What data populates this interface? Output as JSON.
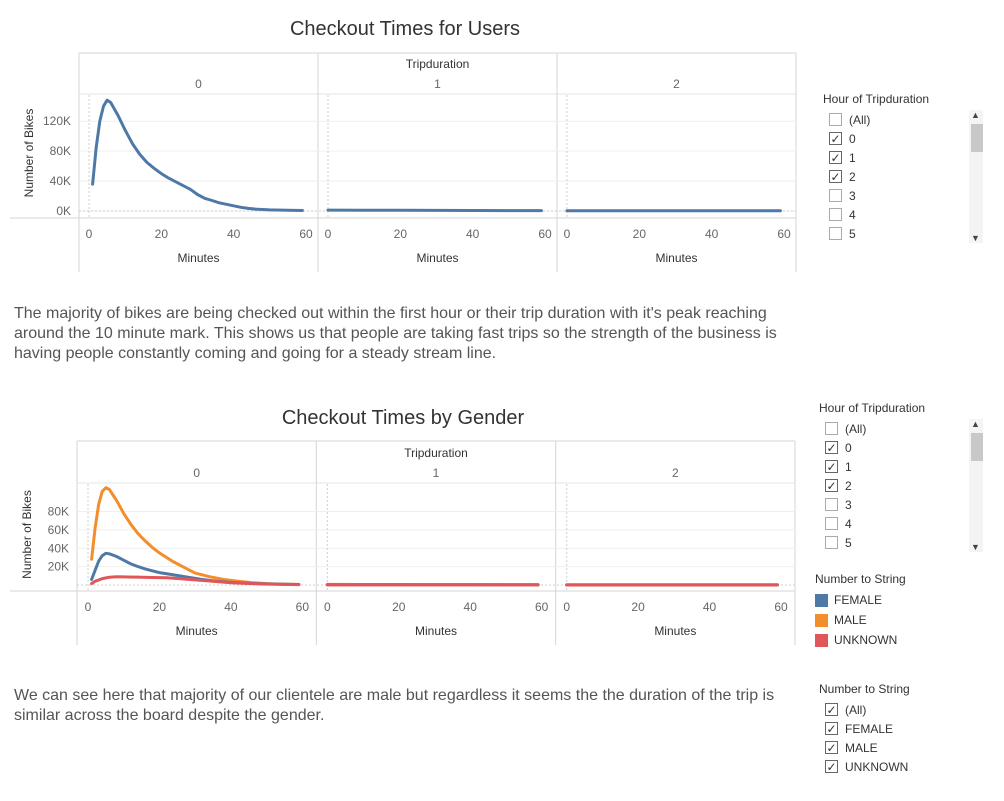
{
  "chart_data": [
    {
      "type": "line",
      "title": "Checkout Times for Users",
      "column_header": "Tripduration",
      "facets": [
        "0",
        "1",
        "2"
      ],
      "xlabel": "Minutes",
      "ylabel": "Number of Bikes",
      "xlim": [
        0,
        60
      ],
      "xticks": [
        "0",
        "20",
        "40",
        "60"
      ],
      "ylim": [
        0,
        155000
      ],
      "yticks": [
        {
          "label": "0K",
          "value": 0
        },
        {
          "label": "40K",
          "value": 40000
        },
        {
          "label": "80K",
          "value": 80000
        },
        {
          "label": "120K",
          "value": 120000
        }
      ],
      "grid": true,
      "series": [
        {
          "color": "#4e79a7",
          "panels": [
            {
              "x": [
                1,
                2,
                3,
                4,
                5,
                6,
                8,
                10,
                12,
                14,
                16,
                18,
                20,
                22,
                24,
                26,
                28,
                30,
                32,
                34,
                36,
                38,
                40,
                42,
                44,
                46,
                48,
                50,
                55,
                59
              ],
              "y": [
                36000,
                85000,
                120000,
                140000,
                148000,
                145000,
                128000,
                108000,
                90000,
                76000,
                65000,
                57000,
                50000,
                44000,
                39000,
                34000,
                29000,
                22000,
                17000,
                14000,
                11000,
                9000,
                7000,
                5000,
                3500,
                2500,
                2000,
                1500,
                1000,
                700
              ]
            },
            {
              "x": [
                0,
                10,
                20,
                30,
                40,
                50,
                59
              ],
              "y": [
                1200,
                1000,
                900,
                800,
                700,
                600,
                500
              ]
            },
            {
              "x": [
                0,
                10,
                20,
                30,
                40,
                50,
                59
              ],
              "y": [
                400,
                400,
                400,
                400,
                400,
                400,
                400
              ]
            }
          ]
        }
      ]
    },
    {
      "type": "line",
      "title": "Checkout Times by Gender",
      "column_header": "Tripduration",
      "facets": [
        "0",
        "1",
        "2"
      ],
      "xlabel": "Minutes",
      "ylabel": "Number of Bikes",
      "xlim": [
        0,
        60
      ],
      "xticks": [
        "0",
        "20",
        "40",
        "60"
      ],
      "ylim": [
        0,
        110000
      ],
      "yticks": [
        {
          "label": "20K",
          "value": 20000
        },
        {
          "label": "40K",
          "value": 40000
        },
        {
          "label": "60K",
          "value": 60000
        },
        {
          "label": "80K",
          "value": 80000
        }
      ],
      "grid": true,
      "series": [
        {
          "name": "MALE",
          "color": "#f28e2b",
          "panels": [
            {
              "x": [
                1,
                2,
                3,
                4,
                5,
                6,
                8,
                10,
                12,
                14,
                16,
                18,
                20,
                22,
                24,
                26,
                28,
                30,
                34,
                38,
                42,
                46,
                50,
                55,
                59
              ],
              "y": [
                28000,
                62000,
                88000,
                102000,
                106000,
                104000,
                92000,
                78000,
                66000,
                56000,
                48000,
                41000,
                35000,
                30000,
                25000,
                21000,
                17000,
                13000,
                9000,
                6000,
                4000,
                2500,
                1500,
                900,
                600
              ]
            },
            {
              "x": [
                0,
                10,
                20,
                30,
                40,
                50,
                59
              ],
              "y": [
                600,
                550,
                500,
                450,
                400,
                380,
                350
              ]
            },
            {
              "x": [
                0,
                10,
                20,
                30,
                40,
                50,
                59
              ],
              "y": [
                200,
                200,
                200,
                200,
                200,
                200,
                200
              ]
            }
          ]
        },
        {
          "name": "FEMALE",
          "color": "#4e79a7",
          "panels": [
            {
              "x": [
                1,
                2,
                3,
                4,
                5,
                6,
                8,
                10,
                12,
                14,
                16,
                18,
                20,
                24,
                28,
                32,
                36,
                40,
                45,
                50,
                55,
                59
              ],
              "y": [
                6000,
                16000,
                26000,
                32000,
                34500,
                34000,
                31000,
                27000,
                23000,
                20000,
                17500,
                15500,
                13500,
                11000,
                8500,
                6000,
                4000,
                2800,
                1800,
                1200,
                800,
                500
              ]
            },
            {
              "x": [
                0,
                10,
                20,
                30,
                40,
                50,
                59
              ],
              "y": [
                300,
                300,
                250,
                250,
                200,
                200,
                200
              ]
            },
            {
              "x": [
                0,
                10,
                20,
                30,
                40,
                50,
                59
              ],
              "y": [
                100,
                100,
                100,
                100,
                100,
                100,
                100
              ]
            }
          ]
        },
        {
          "name": "UNKNOWN",
          "color": "#e15759",
          "panels": [
            {
              "x": [
                1,
                2,
                4,
                6,
                8,
                10,
                14,
                18,
                22,
                26,
                30,
                35,
                40,
                45,
                50,
                55,
                59
              ],
              "y": [
                1500,
                4000,
                7000,
                8500,
                9000,
                8800,
                8600,
                8200,
                7800,
                6800,
                5500,
                4000,
                2500,
                1600,
                1000,
                600,
                400
              ]
            },
            {
              "x": [
                0,
                10,
                20,
                30,
                40,
                50,
                59
              ],
              "y": [
                100,
                100,
                100,
                100,
                100,
                100,
                100
              ]
            },
            {
              "x": [
                0,
                10,
                20,
                30,
                40,
                50,
                59
              ],
              "y": [
                50,
                50,
                50,
                50,
                50,
                50,
                50
              ]
            }
          ]
        }
      ]
    }
  ],
  "text": {
    "para1": "The majority of bikes are being checked out within the first hour or their trip duration with it's peak reaching around the 10 minute mark. This shows us that people are taking fast trips so the strength of the business is having people constantly coming and going for a steady stream line.",
    "para2": "We can see here that majority of our clientele are male but regardless it seems the the duration of the trip is similar across the board despite the gender."
  },
  "filters": {
    "hour_filter_1": {
      "title": "Hour of Tripduration",
      "options": [
        {
          "label": "(All)",
          "checked": false
        },
        {
          "label": "0",
          "checked": true
        },
        {
          "label": "1",
          "checked": true
        },
        {
          "label": "2",
          "checked": true
        },
        {
          "label": "3",
          "checked": false
        },
        {
          "label": "4",
          "checked": false
        },
        {
          "label": "5",
          "checked": false
        }
      ]
    },
    "hour_filter_2": {
      "title": "Hour of Tripduration",
      "options": [
        {
          "label": "(All)",
          "checked": false
        },
        {
          "label": "0",
          "checked": true
        },
        {
          "label": "1",
          "checked": true
        },
        {
          "label": "2",
          "checked": true
        },
        {
          "label": "3",
          "checked": false
        },
        {
          "label": "4",
          "checked": false
        },
        {
          "label": "5",
          "checked": false
        }
      ]
    },
    "gender_legend": {
      "title": "Number to String",
      "items": [
        {
          "label": "FEMALE",
          "color": "#4e79a7"
        },
        {
          "label": "MALE",
          "color": "#f28e2b"
        },
        {
          "label": "UNKNOWN",
          "color": "#e15759"
        }
      ]
    },
    "gender_filter": {
      "title": "Number to String",
      "options": [
        {
          "label": "(All)",
          "checked": true
        },
        {
          "label": "FEMALE",
          "checked": true
        },
        {
          "label": "MALE",
          "checked": true
        },
        {
          "label": "UNKNOWN",
          "checked": true
        }
      ]
    }
  }
}
